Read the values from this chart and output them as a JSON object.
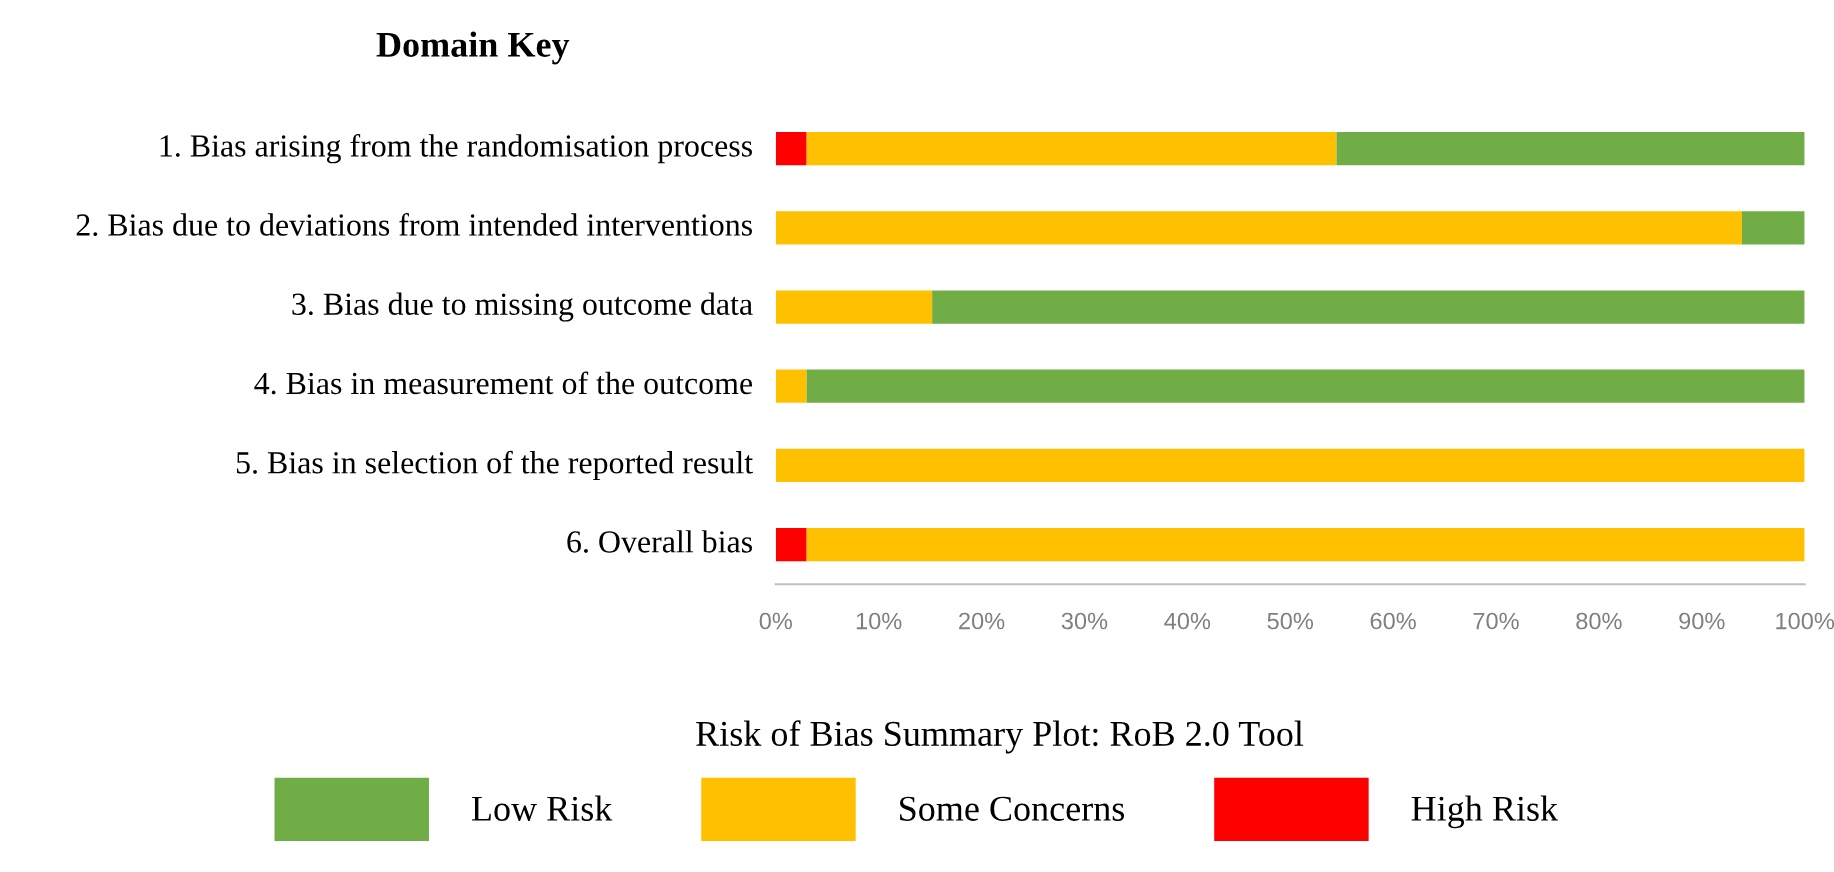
{
  "chart_data": {
    "type": "bar",
    "orientation": "horizontal",
    "stacked": true,
    "title": "Risk of Bias Summary Plot: RoB 2.0 Tool",
    "annotations": [
      "Domain Key"
    ],
    "categories": [
      "1. Bias arising from the randomisation process",
      "2. Bias due to deviations from intended interventions",
      "3. Bias due to missing outcome data",
      "4. Bias in measurement of the outcome",
      "5. Bias in selection of the reported result",
      "6. Overall bias"
    ],
    "series": [
      {
        "name": "High Risk",
        "color": "#ff0000",
        "values": [
          3.0,
          0,
          0,
          0,
          0,
          3.0
        ]
      },
      {
        "name": "Some Concerns",
        "color": "#ffc000",
        "values": [
          51.5,
          93.9,
          15.2,
          3.0,
          100,
          97.0
        ]
      },
      {
        "name": "Low Risk",
        "color": "#70ad47",
        "values": [
          45.5,
          6.1,
          84.8,
          97.0,
          0,
          0
        ]
      }
    ],
    "xlim": [
      0,
      100
    ],
    "xticks": [
      {
        "value": 0,
        "label": "0%"
      },
      {
        "value": 10,
        "label": "10%"
      },
      {
        "value": 20,
        "label": "20%"
      },
      {
        "value": 30,
        "label": "30%"
      },
      {
        "value": 40,
        "label": "40%"
      },
      {
        "value": 50,
        "label": "50%"
      },
      {
        "value": 60,
        "label": "60%"
      },
      {
        "value": 70,
        "label": "70%"
      },
      {
        "value": 80,
        "label": "80%"
      },
      {
        "value": 90,
        "label": "90%"
      },
      {
        "value": 100,
        "label": "100%"
      }
    ],
    "grid": false,
    "legend": "bottom"
  }
}
